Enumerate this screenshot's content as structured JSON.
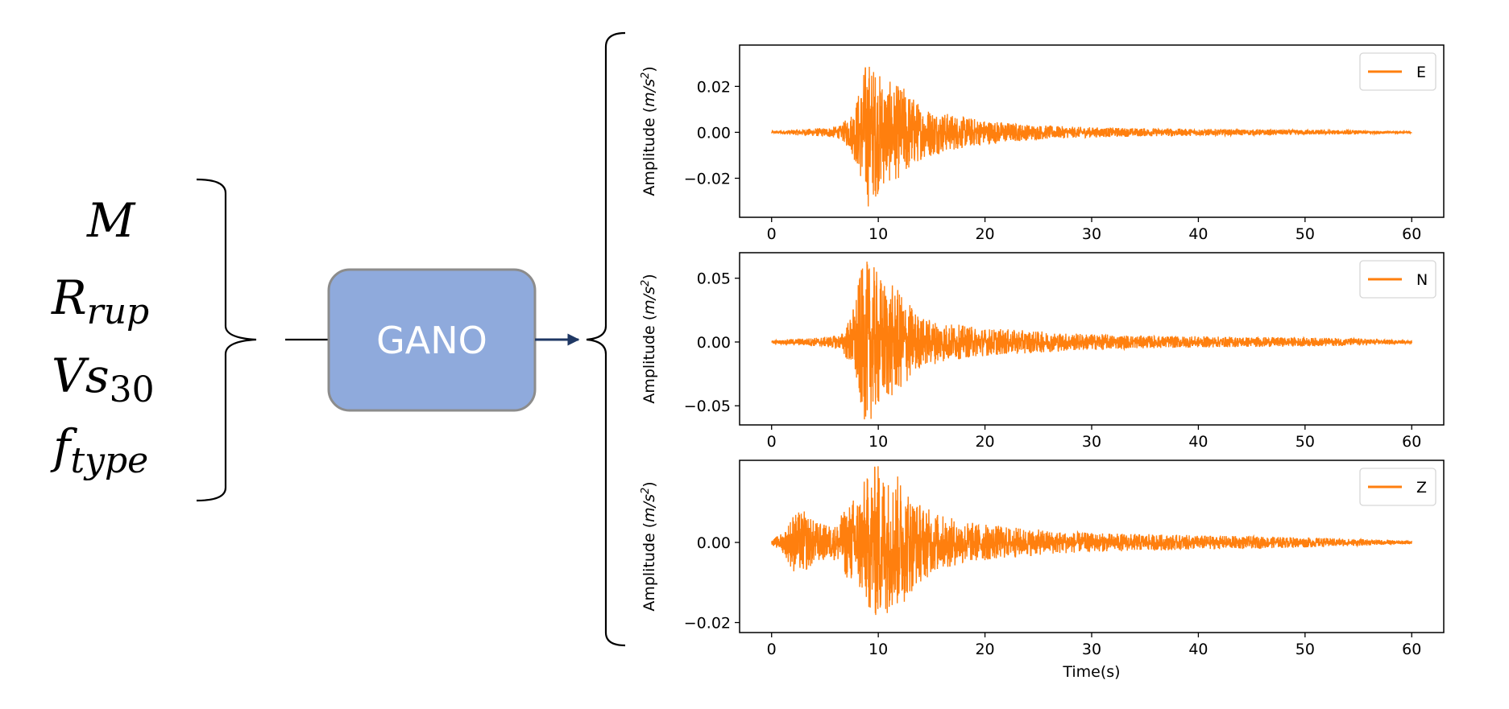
{
  "inputs": {
    "magnitude": {
      "main": "M",
      "sub": ""
    },
    "distance": {
      "main": "R",
      "sub": "rup"
    },
    "site": {
      "main": "Vs",
      "sub": "30"
    },
    "fault": {
      "main": "f",
      "sub": "type"
    }
  },
  "model": {
    "label": "GANO",
    "fill": "#8faadc",
    "stroke": "#8c8c8c"
  },
  "colors": {
    "signal": "#ff7f0e",
    "arrow": "#1f3864"
  },
  "chart_data": [
    {
      "type": "line",
      "legend": "E",
      "legend_position": "top-right",
      "ylabel": "Amplitude (m/s²)",
      "ylabel_main": "Amplitude (",
      "ylabel_unit": "m/s",
      "ylabel_exp": "2",
      "ylabel_close": ")",
      "xlabel": "",
      "xlim": [
        -3,
        63
      ],
      "ylim": [
        -0.037,
        0.038
      ],
      "xticks": [
        0,
        10,
        20,
        30,
        40,
        50,
        60
      ],
      "yticks": [
        -0.02,
        0.0,
        0.02
      ],
      "ytick_labels": [
        "−0.02",
        "0.00",
        "0.02"
      ],
      "envelope": {
        "t": [
          0,
          2,
          5,
          6.5,
          7.5,
          8.3,
          8.9,
          9.5,
          10.5,
          11.5,
          12.5,
          14,
          16,
          18,
          20,
          24,
          28,
          35,
          45,
          55,
          60
        ],
        "amp": [
          0.0004,
          0.0012,
          0.002,
          0.003,
          0.009,
          0.02,
          0.034,
          0.03,
          0.024,
          0.021,
          0.02,
          0.012,
          0.009,
          0.007,
          0.0055,
          0.0035,
          0.0025,
          0.0018,
          0.0013,
          0.0009,
          0.0003
        ]
      }
    },
    {
      "type": "line",
      "legend": "N",
      "legend_position": "top-right",
      "ylabel": "Amplitude (m/s²)",
      "ylabel_main": "Amplitude (",
      "ylabel_unit": "m/s",
      "ylabel_exp": "2",
      "ylabel_close": ")",
      "xlabel": "",
      "xlim": [
        -3,
        63
      ],
      "ylim": [
        -0.065,
        0.07
      ],
      "xticks": [
        0,
        10,
        20,
        30,
        40,
        50,
        60
      ],
      "yticks": [
        -0.05,
        0.0,
        0.05
      ],
      "ytick_labels": [
        "−0.05",
        "0.00",
        "0.05"
      ],
      "envelope": {
        "t": [
          0,
          2,
          5,
          6.5,
          7.5,
          8.3,
          8.9,
          9.5,
          10.5,
          11.5,
          12.5,
          14,
          16,
          18,
          20,
          24,
          28,
          35,
          45,
          55,
          60
        ],
        "amp": [
          0.001,
          0.0025,
          0.004,
          0.006,
          0.022,
          0.055,
          0.064,
          0.06,
          0.05,
          0.044,
          0.035,
          0.02,
          0.016,
          0.013,
          0.011,
          0.009,
          0.007,
          0.005,
          0.004,
          0.003,
          0.001
        ]
      }
    },
    {
      "type": "line",
      "legend": "Z",
      "legend_position": "top-right",
      "ylabel": "Amplitude (m/s²)",
      "ylabel_main": "Amplitude (",
      "ylabel_unit": "m/s",
      "ylabel_exp": "2",
      "ylabel_close": ")",
      "xlabel": "Time(s)",
      "xlim": [
        -3,
        63
      ],
      "ylim": [
        -0.0225,
        0.0205
      ],
      "xticks": [
        0,
        10,
        20,
        30,
        40,
        50,
        60
      ],
      "yticks": [
        -0.02,
        0.0
      ],
      "ytick_labels": [
        "−0.02",
        "0.00"
      ],
      "envelope": {
        "t": [
          0,
          1.2,
          2,
          3,
          4,
          5,
          6,
          7,
          7.8,
          8.5,
          9.3,
          10,
          11,
          12,
          13.5,
          15,
          17,
          19,
          22,
          26,
          30,
          40,
          50,
          60
        ],
        "amp": [
          0.0005,
          0.003,
          0.0075,
          0.008,
          0.0055,
          0.0045,
          0.0045,
          0.009,
          0.012,
          0.015,
          0.018,
          0.021,
          0.017,
          0.017,
          0.011,
          0.008,
          0.006,
          0.005,
          0.004,
          0.003,
          0.0024,
          0.0018,
          0.0013,
          0.0004
        ]
      }
    }
  ]
}
